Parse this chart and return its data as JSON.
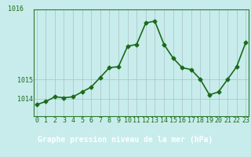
{
  "x": [
    0,
    1,
    2,
    3,
    4,
    5,
    6,
    7,
    8,
    9,
    10,
    11,
    12,
    13,
    14,
    15,
    16,
    17,
    18,
    19,
    20,
    21,
    22,
    23
  ],
  "y": [
    1013.7,
    1013.85,
    1014.1,
    1014.05,
    1014.1,
    1014.35,
    1014.6,
    1015.1,
    1015.6,
    1015.65,
    1016.7,
    1016.8,
    1017.9,
    1018.0,
    1016.8,
    1016.1,
    1015.6,
    1015.5,
    1015.0,
    1014.2,
    1014.35,
    1015.0,
    1015.65,
    1016.9
  ],
  "line_color": "#1a6b1a",
  "marker": "D",
  "marker_size": 2.5,
  "bg_color": "#c8ecec",
  "grid_color": "#b0c8c8",
  "xlabel": "Graphe pression niveau de la mer (hPa)",
  "xlabel_color": "#1a6b1a",
  "ytick_labels": [
    "1014",
    "1015"
  ],
  "ytick_vals": [
    1014,
    1015
  ],
  "ytop_label": "1016",
  "ylim": [
    1013.1,
    1018.6
  ],
  "xlim": [
    -0.3,
    23.3
  ],
  "xtick_labels": [
    "0",
    "1",
    "2",
    "3",
    "4",
    "5",
    "6",
    "7",
    "8",
    "9",
    "10",
    "11",
    "12",
    "13",
    "14",
    "15",
    "16",
    "17",
    "18",
    "19",
    "20",
    "21",
    "22",
    "23"
  ],
  "tick_fontsize": 6.0,
  "xlabel_fontsize": 7.0,
  "line_width": 1.2,
  "bottom_bar_color": "#2d7a2d",
  "bottom_bar_height": 0.22
}
